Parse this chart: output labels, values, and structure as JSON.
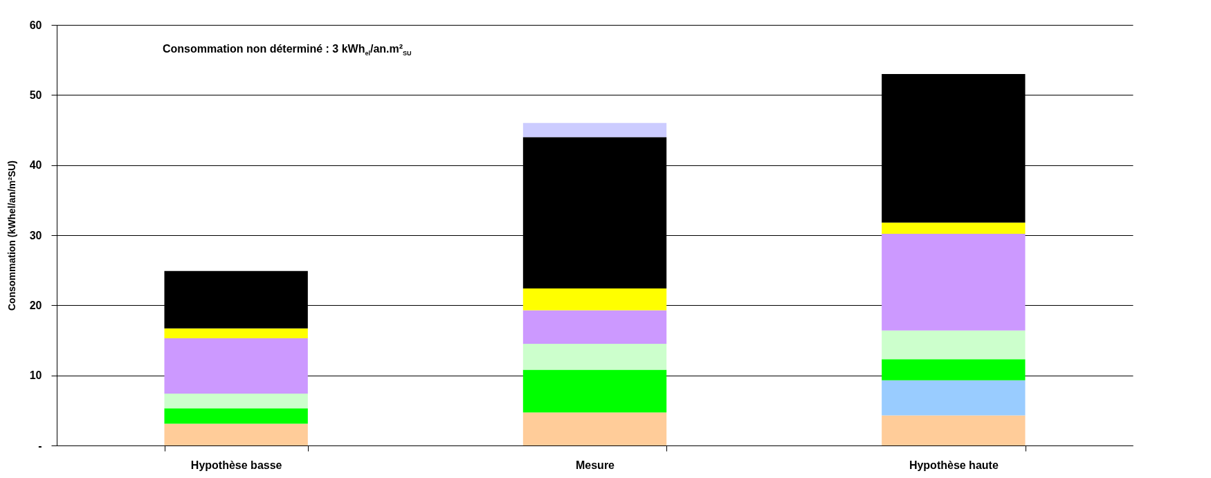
{
  "chart_data": {
    "type": "bar",
    "stacked": true,
    "ylabel": "Consommation (kWhel/an/m²SU)",
    "annotations": [
      "Consommation non déterminé : 3 kWh$_{el}$/an.m²$_{SU}$"
    ],
    "categories": [
      "Hypothèse basse",
      "Mesure",
      "Hypothèse haute"
    ],
    "series": [
      {
        "color": "#ffcc99",
        "values": [
          3.1,
          4.7,
          4.3
        ]
      },
      {
        "color": "#99ccff",
        "values": [
          0,
          0,
          5.0
        ]
      },
      {
        "color": "#00ff00",
        "values": [
          2.2,
          6.1,
          3.0
        ]
      },
      {
        "color": "#ccffcc",
        "values": [
          2.1,
          3.7,
          4.1
        ]
      },
      {
        "color": "#cc99ff",
        "values": [
          7.9,
          4.8,
          13.8
        ]
      },
      {
        "color": "#ffff00",
        "values": [
          1.4,
          3.1,
          1.6
        ]
      },
      {
        "color": "#000000",
        "values": [
          8.2,
          21.6,
          21.2
        ]
      },
      {
        "color": "#ccccff",
        "values": [
          0,
          2.0,
          0
        ]
      }
    ],
    "ylim": [
      0,
      60
    ],
    "yticks": [
      {
        "value": 0,
        "label": "-"
      },
      10,
      20,
      30,
      40,
      50,
      60
    ],
    "grid": "y",
    "legend": false
  }
}
